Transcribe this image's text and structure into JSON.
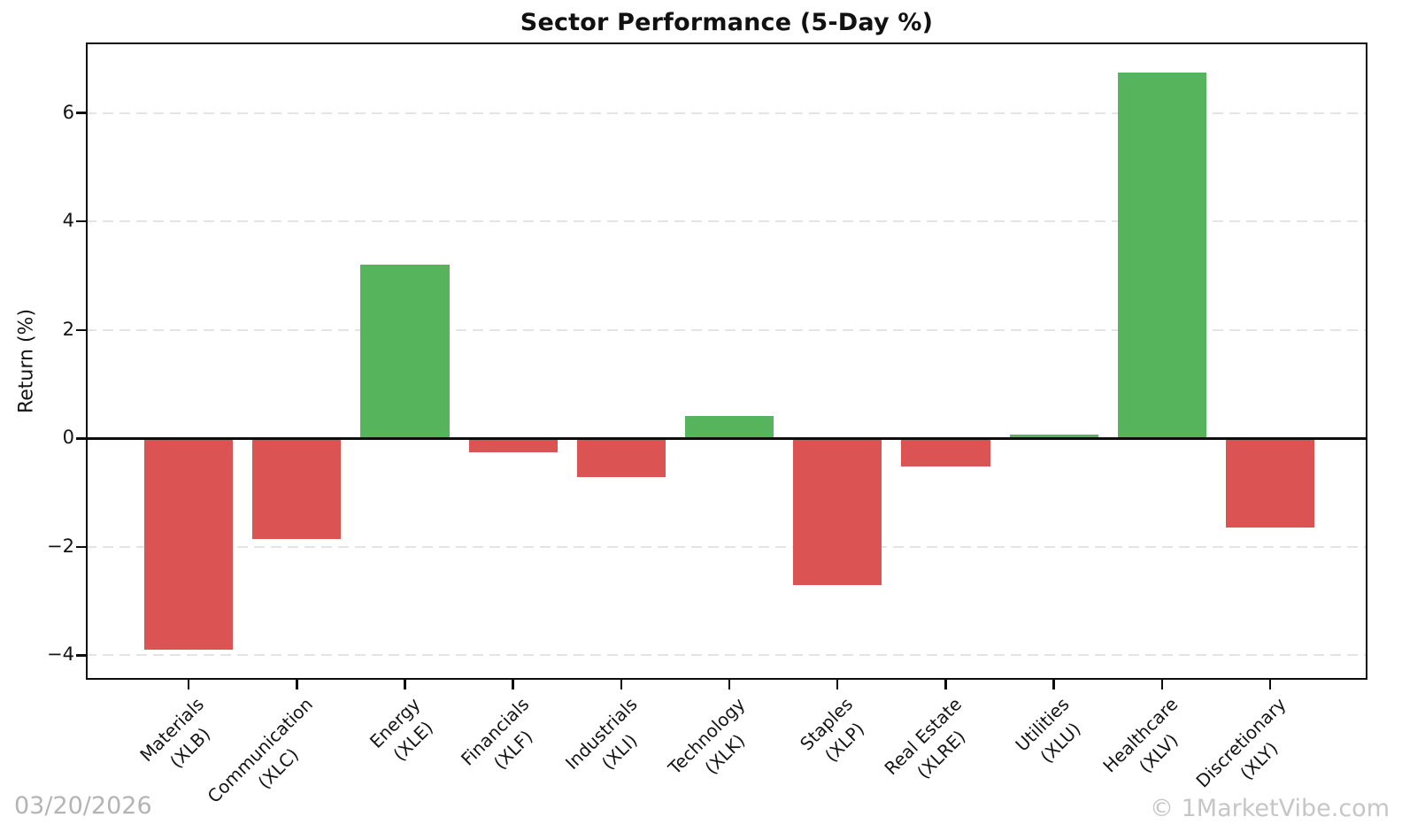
{
  "header": {
    "title": "Sector Performance (5-Day %)"
  },
  "footer": {
    "date": "03/20/2026",
    "watermark": "© 1MarketVibe.com"
  },
  "chart_data": {
    "type": "bar",
    "title": "Sector Performance (5-Day %)",
    "xlabel": "",
    "ylabel": "Return (%)",
    "categories": [
      {
        "name": "Materials",
        "ticker": "(XLB)"
      },
      {
        "name": "Communication",
        "ticker": "(XLC)"
      },
      {
        "name": "Energy",
        "ticker": "(XLE)"
      },
      {
        "name": "Financials",
        "ticker": "(XLF)"
      },
      {
        "name": "Industrials",
        "ticker": "(XLI)"
      },
      {
        "name": "Technology",
        "ticker": "(XLK)"
      },
      {
        "name": "Staples",
        "ticker": "(XLP)"
      },
      {
        "name": "Real Estate",
        "ticker": "(XLRE)"
      },
      {
        "name": "Utilities",
        "ticker": "(XLU)"
      },
      {
        "name": "Healthcare",
        "ticker": "(XLV)"
      },
      {
        "name": "Discretionary",
        "ticker": "(XLY)"
      }
    ],
    "values": [
      -3.9,
      -1.85,
      3.2,
      -0.25,
      -0.72,
      0.42,
      -2.7,
      -0.52,
      0.07,
      6.75,
      -1.65
    ],
    "ylim": [
      -4.45,
      7.3
    ],
    "yticks": [
      6,
      4,
      2,
      0,
      -2,
      -4
    ],
    "grid": {
      "axis": "y",
      "style": "dashed",
      "color": "#e4e4e4",
      "zero_line_solid": true
    },
    "legend": null,
    "colors": {
      "positive": "#56b45c",
      "negative": "#db5353",
      "axis": "#0d0d0d",
      "grid": "#e4e4e4"
    }
  }
}
